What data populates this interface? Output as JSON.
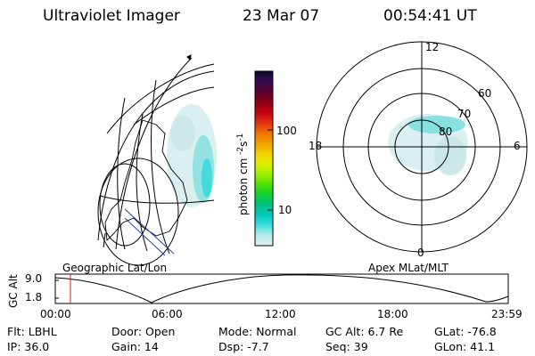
{
  "header": {
    "instrument": "Ultraviolet Imager",
    "date": "23 Mar 07",
    "time": "00:54:41  UT"
  },
  "colorbar": {
    "unit_label": "photon cm",
    "unit_exp1": "-2",
    "unit_mid": "s",
    "unit_exp2": "-1",
    "ticks": [
      "100",
      "10"
    ],
    "colors": [
      "#0a0a30",
      "#3a0a50",
      "#5a0030",
      "#8a0010",
      "#c00010",
      "#e03010",
      "#f07000",
      "#f0a000",
      "#f0d000",
      "#e0f000",
      "#a0f000",
      "#50e000",
      "#10d030",
      "#00c080",
      "#00c8c0",
      "#40e0e0",
      "#b8e8e8",
      "#e0f0f0"
    ]
  },
  "polar_plot": {
    "mlt_labels": {
      "top": "12",
      "right": "6",
      "bottom": "0",
      "left": "18"
    },
    "lat_labels": [
      "60",
      "70",
      "80"
    ]
  },
  "panel_labels": {
    "left": "Geographic Lat/Lon",
    "right": "Apex MLat/MLT"
  },
  "altitude_panel": {
    "axis_label": "GC Alt",
    "ymax": "9.0",
    "ymin": "1.8",
    "x_ticks": [
      "00:00",
      "06:00",
      "12:00",
      "18:00",
      "23:59"
    ],
    "marker_color": "#d02020"
  },
  "info": {
    "flt": "Flt: LBHL",
    "ip": "IP: 36.0",
    "door": "Door: Open",
    "gain": "Gain: 14",
    "mode": "Mode: Normal",
    "dsp": "Dsp:   -7.7",
    "gc_alt": "GC Alt: 6.7 Re",
    "seq": "Seq: 39",
    "glat": "GLat: -76.8",
    "glon": "GLon:  41.1"
  }
}
